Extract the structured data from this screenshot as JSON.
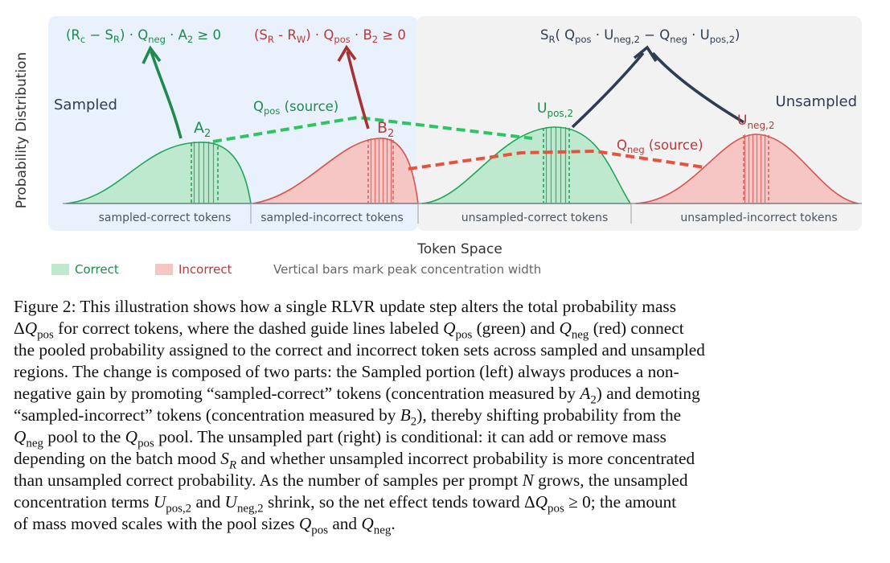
{
  "figure": {
    "y_axis_label": "Probability Distribution",
    "x_axis_label": "Token Space",
    "region_left": "Sampled",
    "region_right": "Unsampled",
    "formulas": {
      "left": {
        "a": "(R",
        "a_sub": "c",
        "b": " − S",
        "b_sub": "R",
        "c": ") · Q",
        "c_sub": "neg",
        "d": " · A",
        "d_sub": "2",
        "e": " ≥ 0"
      },
      "middle": {
        "a": "(S",
        "a_sub": "R",
        "b": " - R",
        "b_sub": "W",
        "c": ") · Q",
        "c_sub": "pos",
        "d": " · B",
        "d_sub": "2",
        "e": " ≥ 0"
      },
      "right": {
        "a": "S",
        "a_sub": "R",
        "b": "( Q",
        "b_sub": "pos",
        "c": " · U",
        "c_sub": "neg,2",
        "d": " − Q",
        "d_sub": "neg",
        "e": " · U",
        "e_sub": "pos,2",
        "f": ")"
      }
    },
    "curve_labels": {
      "a2": {
        "main": "A",
        "sub": "2"
      },
      "b2": {
        "main": "B",
        "sub": "2"
      },
      "upos2": {
        "main": "U",
        "sub": "pos,2"
      },
      "uneg2": {
        "main": "U",
        "sub": "neg,2"
      }
    },
    "guides": {
      "qpos": {
        "main": "Q",
        "sub": "pos",
        "suffix": " (source)"
      },
      "qneg": {
        "main": "Q",
        "sub": "neg",
        "suffix": " (source)"
      }
    },
    "segments": [
      "sampled-correct tokens",
      "sampled-incorrect tokens",
      "unsampled-correct tokens",
      "unsampled-incorrect tokens"
    ],
    "legend": {
      "correct": "Correct",
      "incorrect": "Incorrect",
      "note": "Vertical bars mark peak concentration width"
    },
    "colors": {
      "green": "#22a55b",
      "green_fill": "#bfe9cf",
      "red": "#d9534f",
      "red_fill": "#f6c6c4",
      "dark_green": "#1e8b4c",
      "dark_red": "#a63232",
      "navy": "#2f3c52",
      "sampled_bg": "#e9f2fc",
      "unsampled_bg": "#f2f2f2"
    }
  },
  "caption": {
    "l1": "Figure 2: This illustration shows how a single RLVR update step alters the total probability mass",
    "l2_pre": " for correct tokens, where the dashed guide lines labeled ",
    "l2_mid1": " (green) and ",
    "l2_mid2": " (red) connect",
    "l3": "the pooled probability assigned to the correct and incorrect token sets across sampled and unsampled",
    "l4": "regions.  The change is composed of two parts:  the Sampled portion (left) always produces a non-",
    "l5_pre": "negative gain by promoting “sampled-correct” tokens (concentration measured by ",
    "l5_post": ") and demoting",
    "l6_pre": "“sampled-incorrect” tokens (concentration measured by ",
    "l6_post": "), thereby shifting probability from the",
    "l7_a": " pool to the ",
    "l7_b": " pool.  The unsampled part (right) is conditional:  it can add or remove mass",
    "l8_pre": "depending on the batch mood ",
    "l8_post": " and whether unsampled incorrect probability is more concentrated",
    "l9_pre": "than unsampled correct probability. As the number of samples per prompt ",
    "l9_post": " grows, the unsampled",
    "l10_pre": "concentration terms ",
    "l10_mid": " and ",
    "l10_post": " shrink, so the net effect tends toward ",
    "l10_end": "; the amount",
    "l11_pre": "of mass moved scales with the pool sizes ",
    "l11_mid": " and ",
    "l11_end": ".",
    "sym": {
      "delta": "Δ",
      "Q": "Q",
      "pos": "pos",
      "neg": "neg",
      "A": "A",
      "B": "B",
      "two": "2",
      "S": "S",
      "R": "R",
      "N": "N",
      "U": "U",
      "pos2": "pos,2",
      "neg2": "neg,2",
      "geq0": " ≥ 0"
    }
  }
}
